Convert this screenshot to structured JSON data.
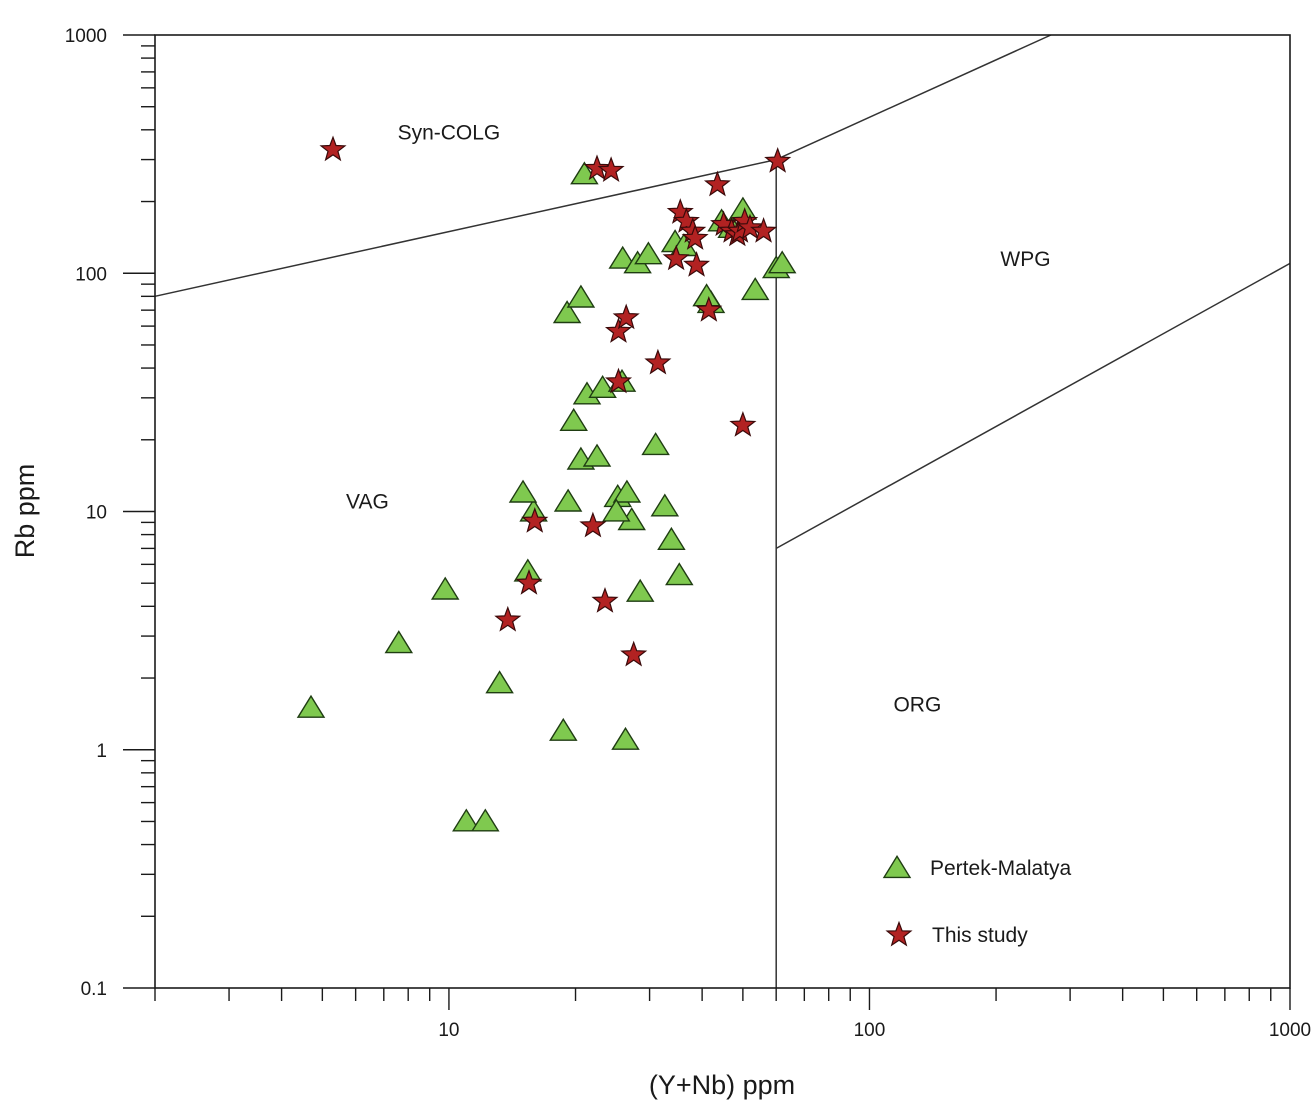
{
  "chart_data": {
    "type": "scatter",
    "x_scale": "log",
    "y_scale": "log",
    "xlim": [
      2,
      1000
    ],
    "ylim": [
      0.1,
      1000
    ],
    "xlabel": "(Y+Nb) ppm",
    "ylabel": "Rb ppm",
    "grid": false,
    "legend_position": "bottom-right",
    "x_ticks": [
      {
        "value": 10,
        "label": "10"
      },
      {
        "value": 100,
        "label": "100"
      },
      {
        "value": 1000,
        "label": "1000"
      }
    ],
    "y_ticks": [
      {
        "value": 0.1,
        "label": "0.1"
      },
      {
        "value": 1,
        "label": "1"
      },
      {
        "value": 10,
        "label": "10"
      },
      {
        "value": 100,
        "label": "100"
      },
      {
        "value": 1000,
        "label": "1000"
      }
    ],
    "field_labels": [
      {
        "text": "Syn-COLG",
        "x": 10.0,
        "y": 390
      },
      {
        "text": "VAG",
        "x": 6.4,
        "y": 11
      },
      {
        "text": "WPG",
        "x": 235,
        "y": 115
      },
      {
        "text": "ORG",
        "x": 130,
        "y": 1.55
      }
    ],
    "boundaries": [
      {
        "name": "syn-colg-vag",
        "points": [
          [
            2,
            80
          ],
          [
            60,
            300
          ]
        ]
      },
      {
        "name": "syn-colg-wpg",
        "points": [
          [
            60,
            300
          ],
          [
            270,
            1000
          ]
        ]
      },
      {
        "name": "vag-wpg-org",
        "points": [
          [
            60,
            0.1
          ],
          [
            60,
            300
          ]
        ]
      },
      {
        "name": "wpg-org",
        "points": [
          [
            60,
            7
          ],
          [
            1000,
            110
          ]
        ]
      }
    ],
    "series": [
      {
        "name": "Pertek-Malatya",
        "marker": "triangle",
        "color": "#7fc94f",
        "x": [
          4.7,
          9.8,
          7.6,
          11,
          12.2,
          13.2,
          18.7,
          26.3,
          15.4,
          15.9,
          15,
          19.2,
          19.8,
          20.6,
          21.3,
          22.5,
          23.2,
          25.2,
          26.5,
          27.2,
          25,
          25.8,
          19.1,
          20.6,
          28.5,
          31,
          32.6,
          33.8,
          35.3,
          25.9,
          28.1,
          29.8,
          34.5,
          36.2,
          42,
          44.5,
          47,
          50,
          53.5,
          60,
          62,
          21,
          41
        ],
        "y": [
          1.5,
          4.7,
          2.8,
          0.5,
          0.5,
          1.9,
          1.2,
          1.1,
          5.6,
          10,
          12,
          11,
          24,
          16.5,
          31,
          17,
          33,
          11.5,
          12,
          9.2,
          10,
          35,
          68,
          79,
          4.6,
          19,
          10.5,
          7.6,
          5.4,
          115,
          110,
          120,
          135,
          130,
          75,
          165,
          155,
          185,
          85,
          105,
          110,
          260,
          80
        ]
      },
      {
        "name": "This study",
        "marker": "star",
        "color": "#b22222",
        "x": [
          5.3,
          22.5,
          24.3,
          16,
          15.5,
          13.8,
          22,
          23.5,
          27.5,
          25.3,
          25.3,
          26.4,
          31.4,
          34.7,
          35.5,
          36.7,
          38,
          38.5,
          38.8,
          41.5,
          43.5,
          45,
          47,
          48.5,
          49.2,
          50.5,
          52,
          56,
          60.5,
          50
        ],
        "y": [
          330,
          275,
          270,
          9.1,
          5,
          3.5,
          8.7,
          4.2,
          2.5,
          35,
          57,
          65,
          42,
          115,
          180,
          165,
          150,
          140,
          108,
          70,
          235,
          160,
          150,
          145,
          150,
          165,
          155,
          150,
          295,
          23
        ]
      }
    ]
  }
}
